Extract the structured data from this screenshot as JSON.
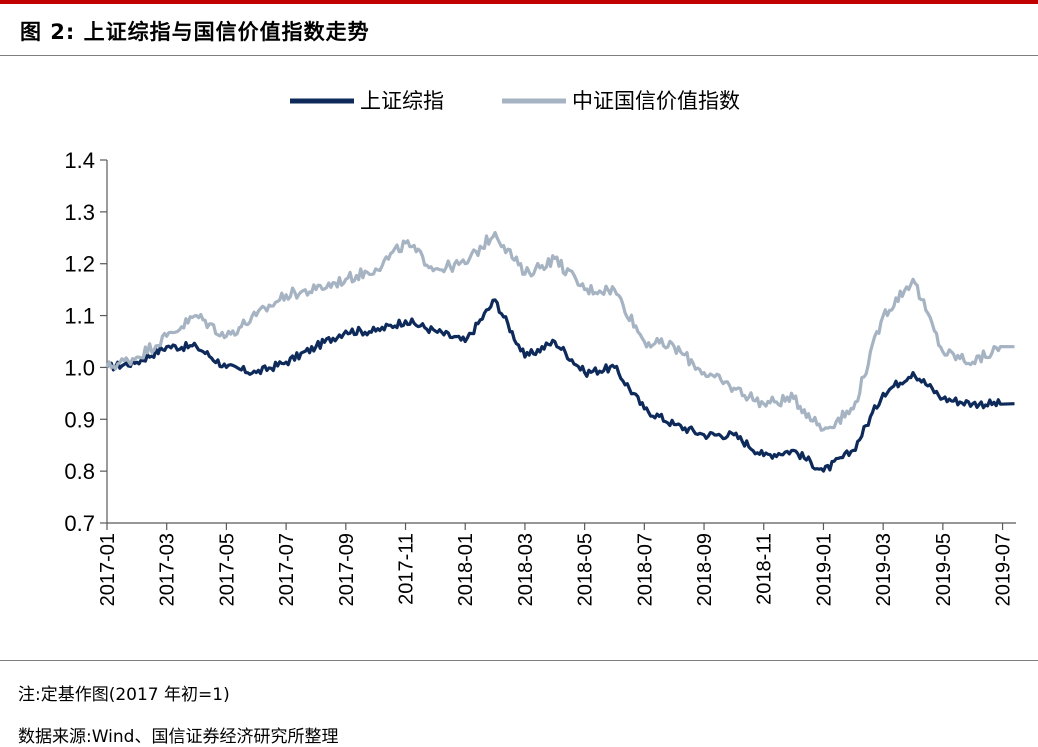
{
  "header": {
    "title": "图 2:  上证综指与国信价值指数走势"
  },
  "chart_data": {
    "type": "line",
    "title": "",
    "xlabel": "",
    "ylabel": "",
    "ylim": [
      0.7,
      1.4
    ],
    "yticks": [
      "0.7",
      "0.8",
      "0.9",
      "1.0",
      "1.1",
      "1.2",
      "1.3",
      "1.4"
    ],
    "x_tick_labels": [
      "2017-01",
      "2017-03",
      "2017-05",
      "2017-07",
      "2017-09",
      "2017-11",
      "2018-01",
      "2018-03",
      "2018-05",
      "2018-07",
      "2018-09",
      "2018-11",
      "2019-01",
      "2019-03",
      "2019-05",
      "2019-07"
    ],
    "x_range": [
      "2017-01",
      "2019-07"
    ],
    "grid": false,
    "legend_position": "top-center",
    "series": [
      {
        "name": "上证综指",
        "color": "#0d2a5a",
        "points": [
          [
            "2017-01",
            1.0
          ],
          [
            "2017-02",
            1.01
          ],
          [
            "2017-03",
            1.04
          ],
          [
            "2017-04",
            1.04
          ],
          [
            "2017-05",
            1.0
          ],
          [
            "2017-06",
            0.99
          ],
          [
            "2017-07",
            1.01
          ],
          [
            "2017-08",
            1.04
          ],
          [
            "2017-09",
            1.07
          ],
          [
            "2017-10",
            1.07
          ],
          [
            "2017-11",
            1.09
          ],
          [
            "2017-12",
            1.07
          ],
          [
            "2018-01",
            1.05
          ],
          [
            "2018-02",
            1.13
          ],
          [
            "2018-03",
            1.02
          ],
          [
            "2018-04",
            1.05
          ],
          [
            "2018-05",
            0.99
          ],
          [
            "2018-06",
            1.0
          ],
          [
            "2018-07",
            0.92
          ],
          [
            "2018-08",
            0.89
          ],
          [
            "2018-09",
            0.87
          ],
          [
            "2018-10",
            0.87
          ],
          [
            "2018-11",
            0.83
          ],
          [
            "2018-12",
            0.84
          ],
          [
            "2019-01",
            0.8
          ],
          [
            "2019-02",
            0.84
          ],
          [
            "2019-03",
            0.95
          ],
          [
            "2019-04",
            0.99
          ],
          [
            "2019-05",
            0.94
          ],
          [
            "2019-06",
            0.93
          ],
          [
            "2019-07",
            0.93
          ]
        ]
      },
      {
        "name": "中证国信价值指数",
        "color": "#a6b3c2",
        "points": [
          [
            "2017-01",
            1.0
          ],
          [
            "2017-02",
            1.02
          ],
          [
            "2017-03",
            1.06
          ],
          [
            "2017-04",
            1.1
          ],
          [
            "2017-05",
            1.06
          ],
          [
            "2017-06",
            1.1
          ],
          [
            "2017-07",
            1.14
          ],
          [
            "2017-08",
            1.15
          ],
          [
            "2017-09",
            1.17
          ],
          [
            "2017-10",
            1.19
          ],
          [
            "2017-11",
            1.24
          ],
          [
            "2017-12",
            1.19
          ],
          [
            "2018-01",
            1.2
          ],
          [
            "2018-02",
            1.26
          ],
          [
            "2018-03",
            1.18
          ],
          [
            "2018-04",
            1.21
          ],
          [
            "2018-05",
            1.15
          ],
          [
            "2018-06",
            1.15
          ],
          [
            "2018-07",
            1.05
          ],
          [
            "2018-08",
            1.04
          ],
          [
            "2018-09",
            0.99
          ],
          [
            "2018-10",
            0.96
          ],
          [
            "2018-11",
            0.93
          ],
          [
            "2018-12",
            0.94
          ],
          [
            "2019-01",
            0.88
          ],
          [
            "2019-02",
            0.92
          ],
          [
            "2019-03",
            1.1
          ],
          [
            "2019-04",
            1.17
          ],
          [
            "2019-05",
            1.03
          ],
          [
            "2019-06",
            1.01
          ],
          [
            "2019-07",
            1.04
          ]
        ]
      }
    ]
  },
  "footer": {
    "note": "注:定基作图(2017 年初=1)",
    "source": "数据来源:Wind、国信证券经济研究所整理"
  }
}
